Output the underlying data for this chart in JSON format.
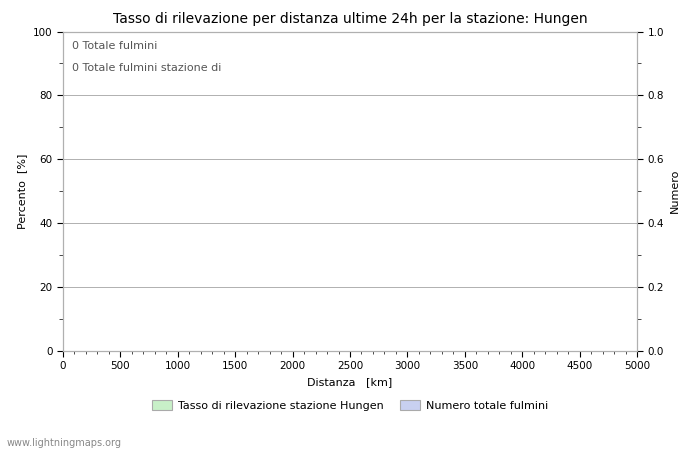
{
  "title": "Tasso di rilevazione per distanza ultime 24h per la stazione: Hungen",
  "xlabel": "Distanza   [km]",
  "ylabel_left": "Percento  [%]",
  "ylabel_right": "Numero",
  "xlim": [
    0,
    5000
  ],
  "ylim_left": [
    0,
    100
  ],
  "ylim_right": [
    0,
    1.0
  ],
  "xticks": [
    0,
    500,
    1000,
    1500,
    2000,
    2500,
    3000,
    3500,
    4000,
    4500,
    5000
  ],
  "yticks_left": [
    0,
    20,
    40,
    60,
    80,
    100
  ],
  "yticks_right": [
    0.0,
    0.2,
    0.4,
    0.6,
    0.8,
    1.0
  ],
  "annotation_line1": "0 Totale fulmini",
  "annotation_line2": "0 Totale fulmini stazione di",
  "legend_label1": "Tasso di rilevazione stazione Hungen",
  "legend_label2": "Numero totale fulmini",
  "legend_color1": "#c8f0c8",
  "legend_color2": "#c8d0f0",
  "watermark": "www.lightningmaps.org",
  "background_color": "#ffffff",
  "grid_color": "#b0b0b0",
  "annotation_fontsize": 8,
  "title_fontsize": 10,
  "label_fontsize": 8,
  "tick_fontsize": 7.5,
  "legend_fontsize": 8
}
